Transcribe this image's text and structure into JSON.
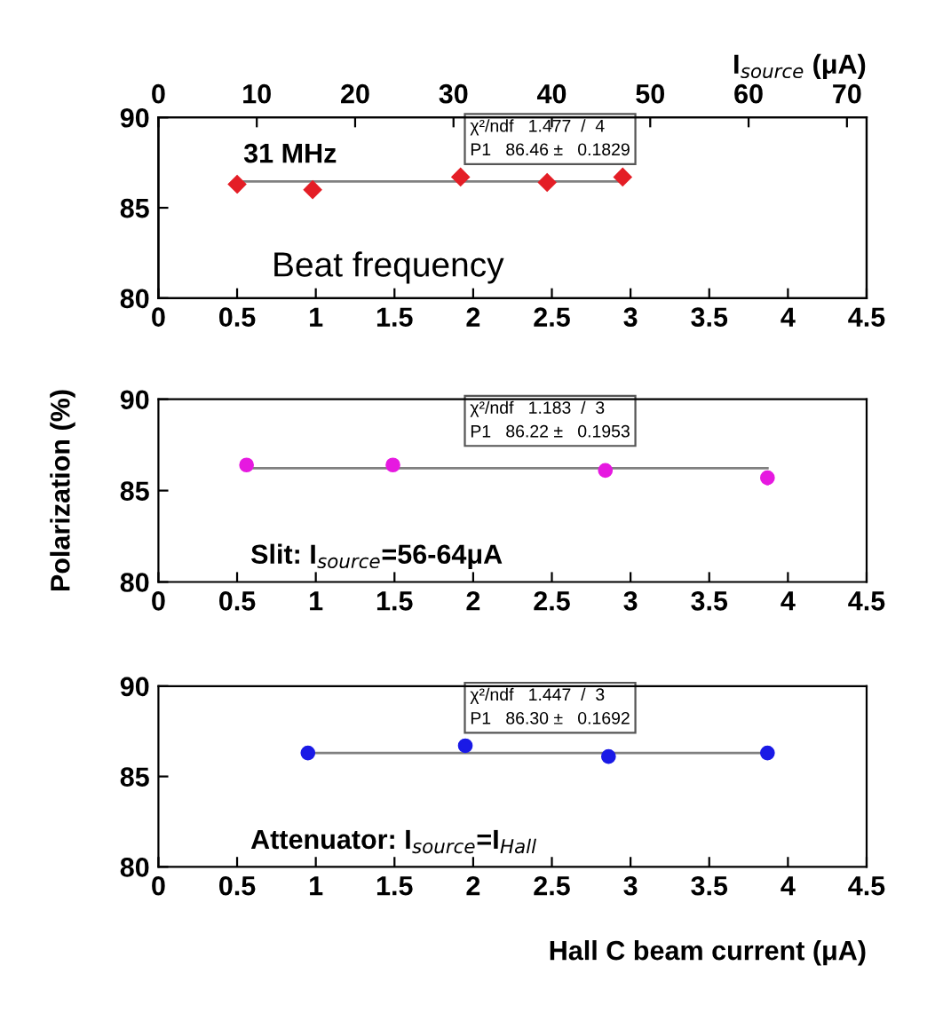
{
  "chart_data": [
    {
      "type": "scatter",
      "x2label": "I$_{source}$ (μA)",
      "x2lim": [
        0,
        72
      ],
      "x2ticks": [
        0,
        10,
        20,
        30,
        40,
        50,
        60,
        70
      ],
      "xlim": [
        0,
        4.5
      ],
      "xticks": [
        0,
        0.5,
        1,
        1.5,
        2,
        2.5,
        3,
        3.5,
        4,
        4.5
      ],
      "ylim": [
        80,
        90
      ],
      "yticks": [
        80,
        85,
        90
      ],
      "grid": false,
      "legend": false,
      "annotations": [
        "31 MHz",
        "Beat frequency",
        "χ²/ndf   1.477  /  4",
        "P1   86.46 ±   0.1829"
      ],
      "series": [
        {
          "marker": "diamond",
          "color": "#e41e26",
          "x": [
            0.5,
            0.98,
            1.92,
            2.47,
            2.95
          ],
          "values": [
            86.3,
            86.0,
            86.7,
            86.4,
            86.7
          ],
          "errors": [
            0.2,
            0.2,
            0.2,
            0.2,
            0.2
          ]
        },
        {
          "type": "line",
          "color": "#808080",
          "x": [
            0.5,
            2.95
          ],
          "values": [
            86.46,
            86.46
          ]
        }
      ]
    },
    {
      "type": "scatter",
      "ylabel": "Polarization (%)",
      "xlim": [
        0,
        4.5
      ],
      "xticks": [
        0,
        0.5,
        1,
        1.5,
        2,
        2.5,
        3,
        3.5,
        4,
        4.5
      ],
      "ylim": [
        80,
        90
      ],
      "yticks": [
        80,
        85,
        90
      ],
      "grid": false,
      "legend": false,
      "annotations": [
        "Slit: I$_{source}$=56-64μA",
        "χ²/ndf   1.183  /  3",
        "P1   86.22 ±   0.1953"
      ],
      "series": [
        {
          "marker": "circle",
          "color": "#e619e0",
          "x": [
            0.56,
            1.49,
            2.84,
            3.87
          ],
          "values": [
            86.4,
            86.4,
            86.1,
            85.7
          ],
          "errors": [
            0.2,
            0.2,
            0.2,
            0.4
          ]
        },
        {
          "type": "line",
          "color": "#808080",
          "x": [
            0.56,
            3.87
          ],
          "values": [
            86.22,
            86.22
          ]
        }
      ]
    },
    {
      "type": "scatter",
      "xlabel": "Hall C beam current (μA)",
      "xlim": [
        0,
        4.5
      ],
      "xticks": [
        0,
        0.5,
        1,
        1.5,
        2,
        2.5,
        3,
        3.5,
        4,
        4.5
      ],
      "ylim": [
        80,
        90
      ],
      "yticks": [
        80,
        85,
        90
      ],
      "grid": false,
      "legend": false,
      "annotations": [
        "Attenuator: I$_{source}$=I$_{Hall}$",
        "χ²/ndf   1.447  /  3",
        "P1   86.30 ±   0.1692"
      ],
      "series": [
        {
          "marker": "circle",
          "color": "#1a1ae6",
          "x": [
            0.95,
            1.95,
            2.86,
            3.87
          ],
          "values": [
            86.3,
            86.7,
            86.1,
            86.3
          ],
          "errors": [
            0.15,
            0.15,
            0.15,
            0.15
          ]
        },
        {
          "type": "line",
          "color": "#808080",
          "x": [
            0.95,
            3.87
          ],
          "values": [
            86.3,
            86.3
          ]
        }
      ]
    }
  ]
}
